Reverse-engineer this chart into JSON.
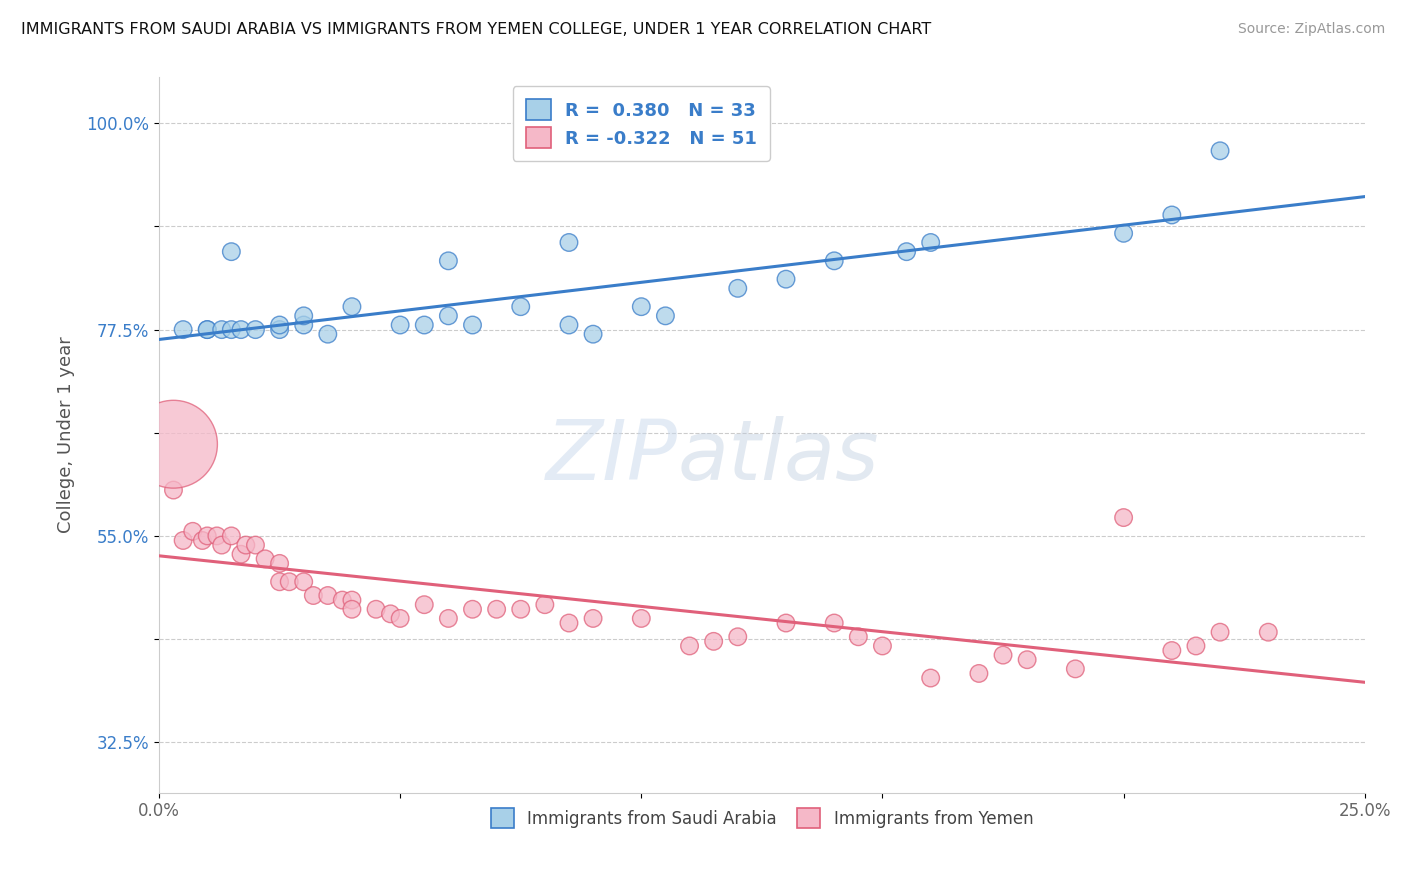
{
  "title": "IMMIGRANTS FROM SAUDI ARABIA VS IMMIGRANTS FROM YEMEN COLLEGE, UNDER 1 YEAR CORRELATION CHART",
  "source": "Source: ZipAtlas.com",
  "ylabel": "College, Under 1 year",
  "xlim": [
    0.0,
    0.25
  ],
  "ylim": [
    0.27,
    1.05
  ],
  "ytick_values": [
    0.325,
    0.4375,
    0.55,
    0.6625,
    0.775,
    0.8875,
    1.0
  ],
  "ytick_labels": [
    "32.5%",
    "",
    "55.0%",
    "",
    "77.5%",
    "",
    "100.0%"
  ],
  "xtick_values": [
    0.0,
    0.05,
    0.1,
    0.15,
    0.2,
    0.25
  ],
  "xtick_labels": [
    "0.0%",
    "",
    "",
    "",
    "",
    "25.0%"
  ],
  "legend_r1": "R =  0.380",
  "legend_n1": "N = 33",
  "legend_r2": "R = -0.322",
  "legend_n2": "N = 51",
  "color_saudi": "#A8D0E8",
  "color_yemen": "#F5B8C8",
  "line_color_saudi": "#3A7DC9",
  "line_color_yemen": "#E0607A",
  "background_color": "#FFFFFF",
  "grid_color": "#CCCCCC",
  "saudi_x": [
    0.005,
    0.01,
    0.01,
    0.013,
    0.015,
    0.017,
    0.02,
    0.025,
    0.025,
    0.03,
    0.03,
    0.035,
    0.04,
    0.05,
    0.055,
    0.06,
    0.065,
    0.075,
    0.085,
    0.09,
    0.1,
    0.105,
    0.12,
    0.13,
    0.14,
    0.155,
    0.16,
    0.2,
    0.21,
    0.22,
    0.06,
    0.085,
    0.015
  ],
  "saudi_y": [
    0.775,
    0.775,
    0.775,
    0.775,
    0.775,
    0.775,
    0.775,
    0.775,
    0.78,
    0.78,
    0.79,
    0.77,
    0.8,
    0.78,
    0.78,
    0.79,
    0.78,
    0.8,
    0.78,
    0.77,
    0.8,
    0.79,
    0.82,
    0.83,
    0.85,
    0.86,
    0.87,
    0.88,
    0.9,
    0.97,
    0.85,
    0.87,
    0.86
  ],
  "saudi_sizes": [
    20,
    20,
    20,
    20,
    20,
    20,
    20,
    20,
    20,
    20,
    20,
    20,
    20,
    20,
    20,
    20,
    20,
    20,
    20,
    20,
    20,
    20,
    20,
    20,
    20,
    20,
    20,
    20,
    20,
    20,
    20,
    20,
    20
  ],
  "yemen_x": [
    0.003,
    0.005,
    0.007,
    0.009,
    0.01,
    0.012,
    0.013,
    0.015,
    0.017,
    0.018,
    0.02,
    0.022,
    0.025,
    0.025,
    0.027,
    0.03,
    0.032,
    0.035,
    0.038,
    0.04,
    0.04,
    0.045,
    0.048,
    0.05,
    0.055,
    0.06,
    0.065,
    0.07,
    0.075,
    0.08,
    0.085,
    0.09,
    0.1,
    0.11,
    0.115,
    0.12,
    0.13,
    0.14,
    0.145,
    0.15,
    0.16,
    0.17,
    0.175,
    0.18,
    0.19,
    0.2,
    0.21,
    0.215,
    0.22,
    0.23,
    0.003
  ],
  "yemen_y": [
    0.6,
    0.545,
    0.555,
    0.545,
    0.55,
    0.55,
    0.54,
    0.55,
    0.53,
    0.54,
    0.54,
    0.525,
    0.52,
    0.5,
    0.5,
    0.5,
    0.485,
    0.485,
    0.48,
    0.48,
    0.47,
    0.47,
    0.465,
    0.46,
    0.475,
    0.46,
    0.47,
    0.47,
    0.47,
    0.475,
    0.455,
    0.46,
    0.46,
    0.43,
    0.435,
    0.44,
    0.455,
    0.455,
    0.44,
    0.43,
    0.395,
    0.4,
    0.42,
    0.415,
    0.405,
    0.57,
    0.425,
    0.43,
    0.445,
    0.445,
    0.65
  ],
  "yemen_sizes": [
    20,
    20,
    20,
    20,
    20,
    20,
    20,
    20,
    20,
    20,
    20,
    20,
    20,
    20,
    20,
    20,
    20,
    20,
    20,
    20,
    20,
    20,
    20,
    20,
    20,
    20,
    20,
    20,
    20,
    20,
    20,
    20,
    20,
    20,
    20,
    20,
    20,
    20,
    20,
    20,
    20,
    20,
    20,
    20,
    20,
    20,
    20,
    20,
    20,
    20,
    500
  ]
}
